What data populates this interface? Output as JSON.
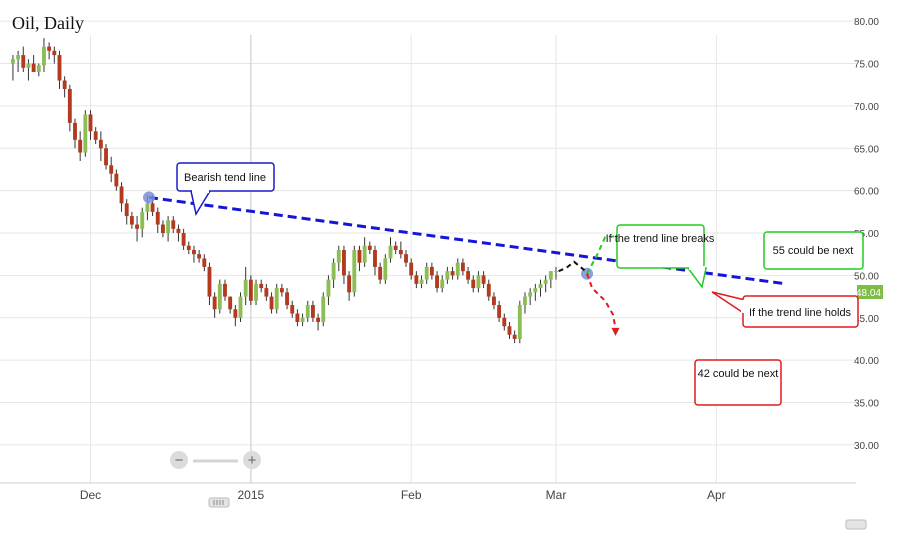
{
  "chart_data": {
    "type": "candlestick",
    "title": "Oil, Daily",
    "y_ticks": [
      "80.00",
      "75.00",
      "70.00",
      "65.00",
      "60.00",
      "55.00",
      "50.00",
      "45.00",
      "40.00",
      "35.00",
      "30.00"
    ],
    "y_tick_values": [
      80,
      75,
      70,
      65,
      60,
      55,
      50,
      45,
      40,
      35,
      30
    ],
    "ylim": [
      25.5,
      82.5
    ],
    "x_ticks": [
      {
        "label": "Dec",
        "day": 15
      },
      {
        "label": "2015",
        "day": 46
      },
      {
        "label": "Feb",
        "day": 77
      },
      {
        "label": "Mar",
        "day": 105
      },
      {
        "label": "Apr",
        "day": 136
      }
    ],
    "xlim": [
      -2.5,
      163
    ],
    "current_price_label": "48.04",
    "current_price": 48.04,
    "grid": true,
    "candles": [
      [
        0,
        75,
        76,
        73,
        75.5
      ],
      [
        1,
        75.5,
        76.5,
        74,
        76
      ],
      [
        2,
        76,
        77,
        74,
        74.5
      ],
      [
        3,
        74.5,
        75.5,
        73,
        75
      ],
      [
        4,
        75,
        76,
        74,
        74
      ],
      [
        5,
        74,
        75,
        73.5,
        74.8
      ],
      [
        6,
        74.8,
        78,
        74,
        77
      ],
      [
        7,
        77,
        77.5,
        75.5,
        76.5
      ],
      [
        8,
        76.5,
        77,
        75,
        76
      ],
      [
        9,
        76,
        76.5,
        72,
        73
      ],
      [
        10,
        73,
        73.5,
        71,
        72
      ],
      [
        11,
        72,
        72.5,
        67,
        68
      ],
      [
        12,
        68,
        68.5,
        65,
        66
      ],
      [
        13,
        66,
        67,
        63.5,
        64.5
      ],
      [
        14,
        64.5,
        69.5,
        64,
        69
      ],
      [
        15,
        69,
        69.5,
        66,
        67
      ],
      [
        16,
        67,
        67.5,
        65.5,
        66
      ],
      [
        17,
        66,
        67,
        63.5,
        65
      ],
      [
        18,
        65,
        65.5,
        62.5,
        63
      ],
      [
        19,
        63,
        64,
        61,
        62
      ],
      [
        20,
        62,
        62.5,
        60,
        60.5
      ],
      [
        21,
        60.5,
        61,
        57.5,
        58.5
      ],
      [
        22,
        58.5,
        59,
        56,
        57
      ],
      [
        23,
        57,
        57.5,
        55.5,
        56
      ],
      [
        24,
        56,
        57,
        54,
        55.5
      ],
      [
        25,
        55.5,
        58,
        54.5,
        57.5
      ],
      [
        26,
        57.5,
        59.5,
        56.5,
        58.5
      ],
      [
        27,
        58.5,
        59.5,
        57,
        57.5
      ],
      [
        28,
        57.5,
        58,
        55,
        56
      ],
      [
        29,
        56,
        56.5,
        54.5,
        55
      ],
      [
        30,
        55,
        57,
        54,
        56.5
      ],
      [
        31,
        56.5,
        57,
        55,
        55.5
      ],
      [
        32,
        55.5,
        56,
        54,
        55
      ],
      [
        33,
        55,
        55.5,
        53,
        53.5
      ],
      [
        34,
        53.5,
        54,
        52.5,
        53
      ],
      [
        35,
        53,
        53.5,
        51.5,
        52.5
      ],
      [
        36,
        52.5,
        53,
        51.5,
        52
      ],
      [
        37,
        52,
        52.5,
        50.5,
        51
      ],
      [
        38,
        51,
        51.5,
        46.5,
        47.5
      ],
      [
        39,
        47.5,
        48,
        45,
        46
      ],
      [
        40,
        46,
        49.5,
        45.5,
        49
      ],
      [
        41,
        49,
        49.5,
        47,
        47.5
      ],
      [
        42,
        47.5,
        47.5,
        45.5,
        46
      ],
      [
        43,
        46,
        46.5,
        44,
        45
      ],
      [
        44,
        45,
        48,
        44.5,
        47.5
      ],
      [
        45,
        47.5,
        51,
        46.5,
        49.5
      ],
      [
        46,
        49.5,
        50,
        46.5,
        47
      ],
      [
        47,
        47,
        49.5,
        46.5,
        49
      ],
      [
        48,
        49,
        49.5,
        48,
        48.5
      ],
      [
        49,
        48.5,
        49,
        47,
        47.5
      ],
      [
        50,
        47.5,
        48,
        45.5,
        46
      ],
      [
        51,
        46,
        49,
        45.5,
        48.5
      ],
      [
        52,
        48.5,
        49,
        47.5,
        48
      ],
      [
        53,
        48,
        48.5,
        46,
        46.5
      ],
      [
        54,
        46.5,
        47,
        45,
        45.5
      ],
      [
        55,
        45.5,
        46,
        44,
        44.5
      ],
      [
        56,
        44.5,
        45.5,
        44,
        45
      ],
      [
        57,
        45,
        47,
        44.5,
        46.5
      ],
      [
        58,
        46.5,
        47,
        44.5,
        45
      ],
      [
        59,
        45,
        45.5,
        43.5,
        44.5
      ],
      [
        60,
        44.5,
        48,
        44,
        47.5
      ],
      [
        61,
        47.5,
        50,
        46.5,
        49.5
      ],
      [
        62,
        49.5,
        52,
        48.5,
        51.5
      ],
      [
        63,
        51.5,
        53.5,
        50.5,
        53
      ],
      [
        64,
        53,
        53.5,
        49,
        50
      ],
      [
        65,
        50,
        50.5,
        47,
        48
      ],
      [
        66,
        48,
        53.5,
        47.5,
        53
      ],
      [
        67,
        53,
        53.5,
        50.5,
        51.5
      ],
      [
        68,
        51.5,
        54.5,
        51,
        53.5
      ],
      [
        69,
        53.5,
        54,
        52.5,
        53
      ],
      [
        70,
        53,
        53.5,
        50,
        51
      ],
      [
        71,
        51,
        51.5,
        49,
        49.5
      ],
      [
        72,
        49.5,
        52.5,
        49,
        52
      ],
      [
        73,
        52,
        54.5,
        51.5,
        53.5
      ],
      [
        74,
        53.5,
        54,
        52.5,
        53
      ],
      [
        75,
        53,
        54,
        52,
        52.5
      ],
      [
        76,
        52.5,
        53,
        51,
        51.5
      ],
      [
        77,
        51.5,
        52,
        49.5,
        50
      ],
      [
        78,
        50,
        50.5,
        48.5,
        49
      ],
      [
        79,
        49,
        50,
        48.5,
        49.5
      ],
      [
        80,
        49.5,
        51.5,
        49,
        51
      ],
      [
        81,
        51,
        51.5,
        49.5,
        50
      ],
      [
        82,
        50,
        50.5,
        48,
        48.5
      ],
      [
        83,
        48.5,
        50,
        48,
        49.5
      ],
      [
        84,
        49.5,
        51,
        49,
        50.5
      ],
      [
        85,
        50.5,
        51,
        49.5,
        50
      ],
      [
        86,
        50,
        52,
        49.5,
        51.5
      ],
      [
        87,
        51.5,
        52,
        50,
        50.5
      ],
      [
        88,
        50.5,
        51,
        49,
        49.5
      ],
      [
        89,
        49.5,
        50,
        48,
        48.5
      ],
      [
        90,
        48.5,
        50.5,
        48,
        50
      ],
      [
        91,
        50,
        50.5,
        48.5,
        49
      ],
      [
        92,
        49,
        49.5,
        47,
        47.5
      ],
      [
        93,
        47.5,
        48,
        46,
        46.5
      ],
      [
        94,
        46.5,
        47,
        44.5,
        45
      ],
      [
        95,
        45,
        45.5,
        43.5,
        44
      ],
      [
        96,
        44,
        44.5,
        42.5,
        43
      ],
      [
        97,
        43,
        43.5,
        42,
        42.5
      ],
      [
        98,
        42.5,
        47,
        42,
        46.5
      ],
      [
        99,
        46.5,
        48,
        45.5,
        47.5
      ],
      [
        100,
        47.5,
        48.5,
        46.5,
        48
      ],
      [
        101,
        48,
        49,
        47,
        48.5
      ],
      [
        102,
        48.5,
        49.5,
        47.5,
        49
      ],
      [
        103,
        49,
        50,
        48,
        49.5
      ],
      [
        104,
        49.5,
        50.5,
        48.5,
        50.5
      ],
      [
        105,
        50.5,
        51,
        49.5,
        50.5
      ]
    ],
    "annotations": {
      "trend_label": "Bearish tend line",
      "breaks_label": "If the trend line breaks",
      "up_target_label": "55 could be next",
      "holds_label": "If the trend line holds",
      "down_target_label": "42 could be next"
    }
  },
  "zoom_controls": {
    "minus_label": "−",
    "plus_label": "+"
  },
  "colors": {
    "up": "#8dbe56",
    "down": "#b33a1f",
    "trend": "#1515d9",
    "grid": "#e6e6e6",
    "green": "#22cc22",
    "red": "#e01b1b",
    "blue": "#1b1bcc"
  }
}
